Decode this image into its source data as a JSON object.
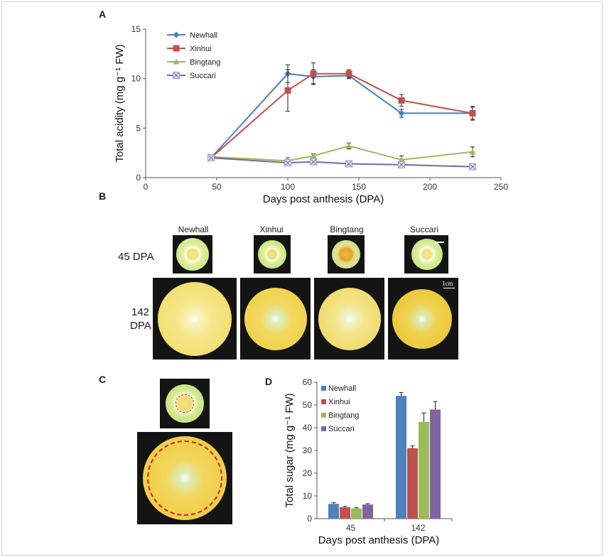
{
  "panels": {
    "a": "A",
    "b": "B",
    "c": "C",
    "d": "D"
  },
  "chart_data": [
    {
      "type": "line",
      "panel": "A",
      "title": "",
      "xlabel": "Days post anthesis (DPA)",
      "ylabel": "Total acidity (mg g⁻¹ FW)",
      "xlim": [
        0,
        250
      ],
      "ylim": [
        0,
        15
      ],
      "xticks": [
        0,
        50,
        100,
        150,
        200,
        250
      ],
      "yticks": [
        0,
        5,
        10,
        15
      ],
      "grid": false,
      "legend_position": "top-left",
      "series": [
        {
          "name": "Newhall",
          "color": "#4a7ebb",
          "marker": "diamond",
          "x": [
            46,
            100,
            118,
            143,
            180,
            230
          ],
          "y": [
            2.0,
            10.5,
            10.2,
            10.3,
            6.5,
            6.5
          ],
          "err": [
            0.2,
            0.9,
            0.7,
            0.3,
            0.4,
            0.6
          ]
        },
        {
          "name": "Xinhui",
          "color": "#c0504d",
          "marker": "square",
          "x": [
            46,
            100,
            118,
            143,
            180,
            230
          ],
          "y": [
            2.0,
            8.8,
            10.5,
            10.5,
            7.8,
            6.5
          ],
          "err": [
            0.2,
            2.1,
            1.1,
            0.4,
            0.6,
            0.7
          ]
        },
        {
          "name": "Bingtang",
          "color": "#9bbb59",
          "marker": "triangle",
          "x": [
            46,
            100,
            118,
            143,
            180,
            230
          ],
          "y": [
            2.1,
            1.7,
            2.2,
            3.2,
            1.8,
            2.6
          ],
          "err": [
            0.2,
            0.3,
            0.2,
            0.3,
            0.4,
            0.5
          ]
        },
        {
          "name": "Succari",
          "color": "#8064a2",
          "marker": "crossed-square",
          "x": [
            46,
            100,
            118,
            143,
            180,
            230
          ],
          "y": [
            2.0,
            1.5,
            1.6,
            1.4,
            1.3,
            1.1
          ],
          "err": [
            0.1,
            0.2,
            0.1,
            0.1,
            0.1,
            0.1
          ]
        }
      ]
    },
    {
      "type": "bar",
      "panel": "D",
      "title": "",
      "xlabel": "Days post anthesis (DPA)",
      "ylabel": "Total sugar (mg g⁻¹ FW)",
      "categories": [
        "45",
        "142"
      ],
      "ylim": [
        0,
        60
      ],
      "yticks": [
        0,
        10,
        20,
        30,
        40,
        50,
        60
      ],
      "grid": false,
      "legend_position": "top-left",
      "series": [
        {
          "name": "Newhall",
          "color": "#4f81bd",
          "values": [
            6.5,
            54.0
          ],
          "err": [
            0.5,
            1.5
          ]
        },
        {
          "name": "Xinhui",
          "color": "#c0504d",
          "values": [
            5.0,
            31.0
          ],
          "err": [
            0.4,
            1.0
          ]
        },
        {
          "name": "Bingtang",
          "color": "#9bbb59",
          "values": [
            4.5,
            42.5
          ],
          "err": [
            0.3,
            4.0
          ]
        },
        {
          "name": "Succari",
          "color": "#8064a2",
          "values": [
            6.2,
            48.0
          ],
          "err": [
            0.4,
            3.5
          ]
        }
      ]
    }
  ],
  "photos": {
    "cultivars": [
      "Newhall",
      "Xinhui",
      "Bingtang",
      "Succari"
    ],
    "row1_label": "45 DPA",
    "row2_label_line1": "142",
    "row2_label_line2": "DPA",
    "scale_bar": "1cm"
  }
}
